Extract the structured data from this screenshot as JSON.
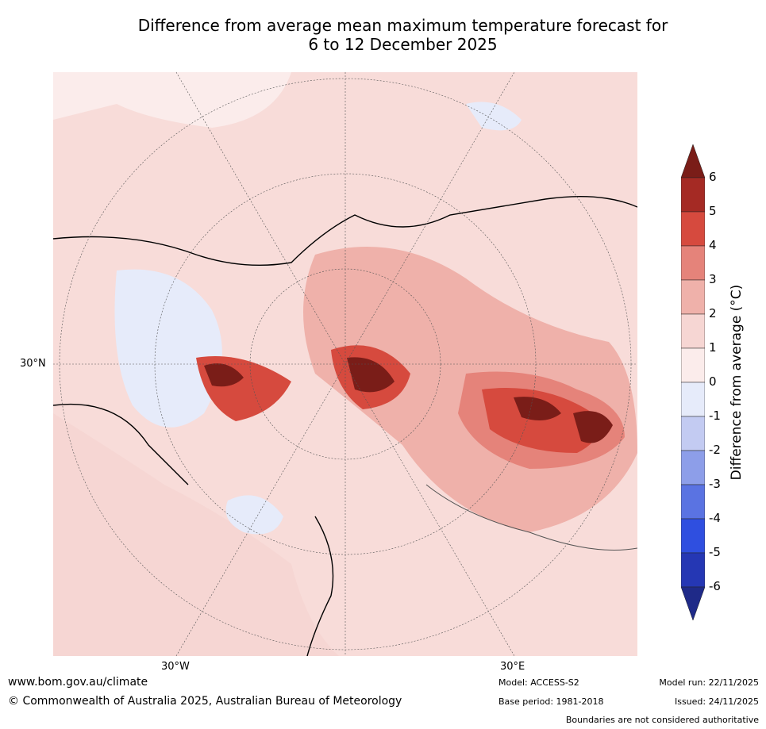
{
  "title_line1": "Difference from average mean maximum temperature forecast for",
  "title_line2": "6 to 12 December 2025",
  "axis_labels": {
    "lat30n": "30°N",
    "lon30w": "30°W",
    "lon30e": "30°E"
  },
  "colorbar": {
    "label": "Difference from average (°C)",
    "ticks": [
      "6",
      "5",
      "4",
      "3",
      "2",
      "1",
      "0",
      "-1",
      "-2",
      "-3",
      "-4",
      "-5",
      "-6"
    ],
    "colors": [
      "#7a1d18",
      "#a52a24",
      "#d64a3e",
      "#e5837a",
      "#efb1aa",
      "#f6d6d3",
      "#fbeceb",
      "#e6ebfa",
      "#c3cbf2",
      "#8d9ee9",
      "#5a73e2",
      "#2f4fe0",
      "#2537b4",
      "#1f2a88"
    ]
  },
  "footer": {
    "url": "www.bom.gov.au/climate",
    "copyright": "© Commonwealth of Australia 2025, Australian Bureau of Meteorology",
    "model": "Model: ACCESS-S2",
    "base_period": "Base period: 1981-2018",
    "model_run": "Model run: 22/11/2025",
    "issued": "Issued: 24/11/2025",
    "disclaimer": "Boundaries are not considered authoritative"
  }
}
